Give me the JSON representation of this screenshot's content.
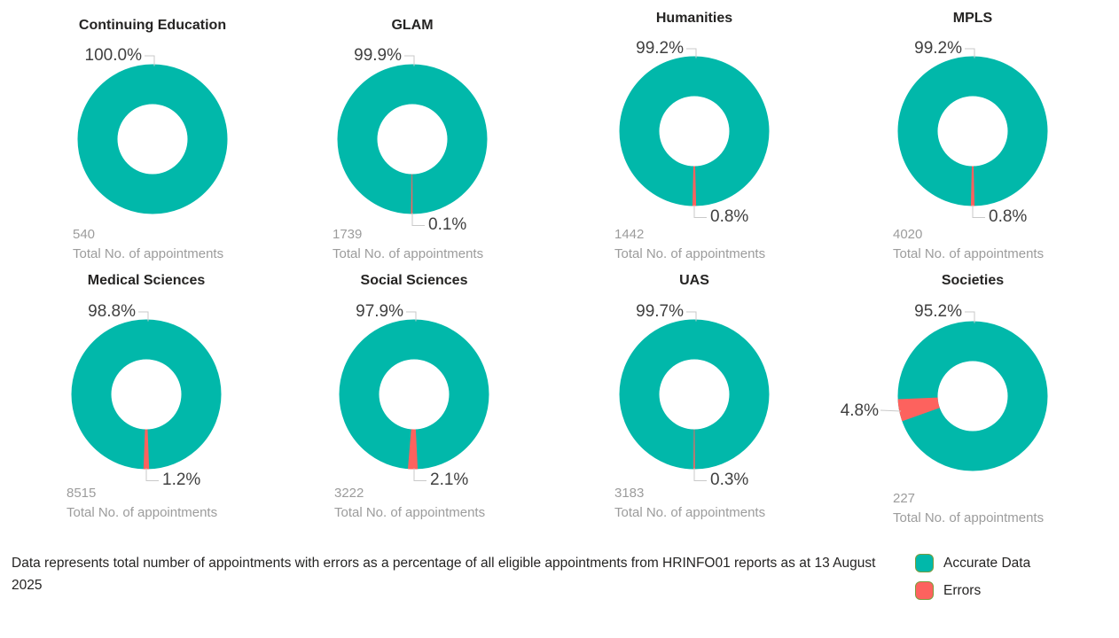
{
  "chart_data": {
    "type": "pie",
    "subtype": "donut-small-multiples",
    "series_names": [
      "Accurate Data",
      "Errors"
    ],
    "colors": {
      "accurate": "#01B8AA",
      "errors": "#FD625E"
    },
    "total_caption": "Total No. of appointments",
    "legend_position": "bottom-right",
    "charts": [
      {
        "title": "Continuing Education",
        "accurate_pct": 100.0,
        "errors_pct": 0.0,
        "accurate_label": "100.0%",
        "errors_label": "",
        "total": "540",
        "errors_label_pos": "none",
        "errors_slice_angle": 180
      },
      {
        "title": "GLAM",
        "accurate_pct": 99.9,
        "errors_pct": 0.1,
        "accurate_label": "99.9%",
        "errors_label": "0.1%",
        "total": "1739",
        "errors_label_pos": "bottom",
        "errors_slice_angle": 180
      },
      {
        "title": "Humanities",
        "accurate_pct": 99.2,
        "errors_pct": 0.8,
        "accurate_label": "99.2%",
        "errors_label": "0.8%",
        "total": "1442",
        "errors_label_pos": "bottom",
        "errors_slice_angle": 180
      },
      {
        "title": "MPLS",
        "accurate_pct": 99.2,
        "errors_pct": 0.8,
        "accurate_label": "99.2%",
        "errors_label": "0.8%",
        "total": "4020",
        "errors_label_pos": "bottom",
        "errors_slice_angle": 180
      },
      {
        "title": "Medical Sciences",
        "accurate_pct": 98.8,
        "errors_pct": 1.2,
        "accurate_label": "98.8%",
        "errors_label": "1.2%",
        "total": "8515",
        "errors_label_pos": "bottom",
        "errors_slice_angle": 180
      },
      {
        "title": "Social Sciences",
        "accurate_pct": 97.9,
        "errors_pct": 2.1,
        "accurate_label": "97.9%",
        "errors_label": "2.1%",
        "total": "3222",
        "errors_label_pos": "bottom",
        "errors_slice_angle": 181
      },
      {
        "title": "UAS",
        "accurate_pct": 99.7,
        "errors_pct": 0.3,
        "accurate_label": "99.7%",
        "errors_label": "0.3%",
        "total": "3183",
        "errors_label_pos": "bottom",
        "errors_slice_angle": 180
      },
      {
        "title": "Societies",
        "accurate_pct": 95.2,
        "errors_pct": 4.8,
        "accurate_label": "95.2%",
        "errors_label": "4.8%",
        "total": "227",
        "errors_label_pos": "left",
        "errors_slice_angle": 259
      }
    ]
  },
  "legend": {
    "items": [
      {
        "label": "Accurate Data",
        "color": "#01B8AA"
      },
      {
        "label": "Errors",
        "color": "#FD625E"
      }
    ]
  },
  "footer": {
    "text": "Data represents total number of appointments with errors as a percentage of all eligible appointments from HRINFO01 reports as at 13 August 2025"
  }
}
